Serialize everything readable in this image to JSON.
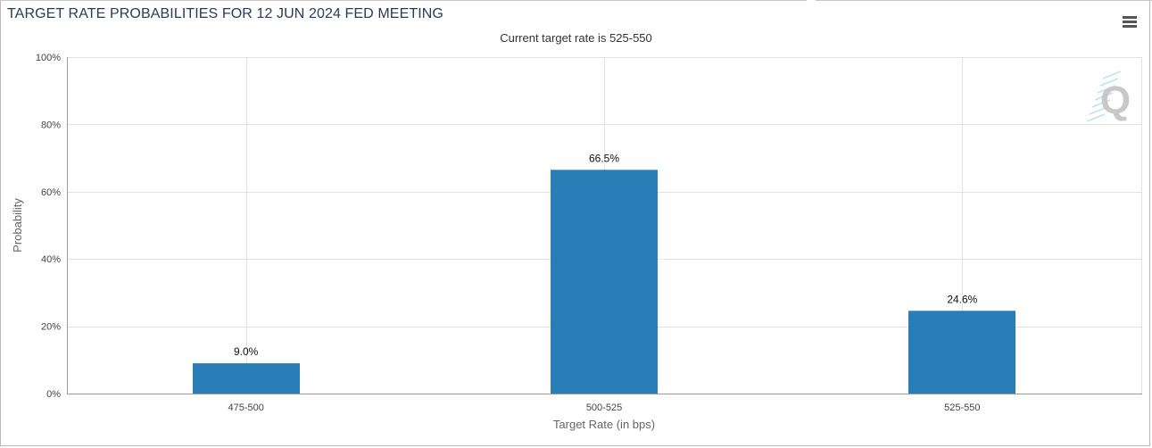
{
  "header": {
    "title": "TARGET RATE PROBABILITIES FOR 12 JUN 2024 FED MEETING",
    "subtitle": "Current target rate is 525-550"
  },
  "colors": {
    "bar": "#2a7eb7",
    "grid": "#e2e2e2",
    "axis": "#9a9a9a",
    "title": "#2a3b55"
  },
  "icons": {
    "menu": "hamburger-menu-icon",
    "watermark": "q-logo-watermark"
  },
  "chart_data": {
    "type": "bar",
    "categories": [
      "475-500",
      "500-525",
      "525-550"
    ],
    "values": [
      9.0,
      66.5,
      24.6
    ],
    "data_labels": [
      "9.0%",
      "66.5%",
      "24.6%"
    ],
    "title": "TARGET RATE PROBABILITIES FOR 12 JUN 2024 FED MEETING",
    "subtitle": "Current target rate is 525-550",
    "xlabel": "Target Rate (in bps)",
    "ylabel": "Probability",
    "ylim": [
      0,
      100
    ],
    "yticks": [
      0,
      20,
      40,
      60,
      80,
      100
    ],
    "ytick_labels": [
      "0%",
      "20%",
      "40%",
      "60%",
      "80%",
      "100%"
    ],
    "grid": true,
    "legend": "none"
  }
}
